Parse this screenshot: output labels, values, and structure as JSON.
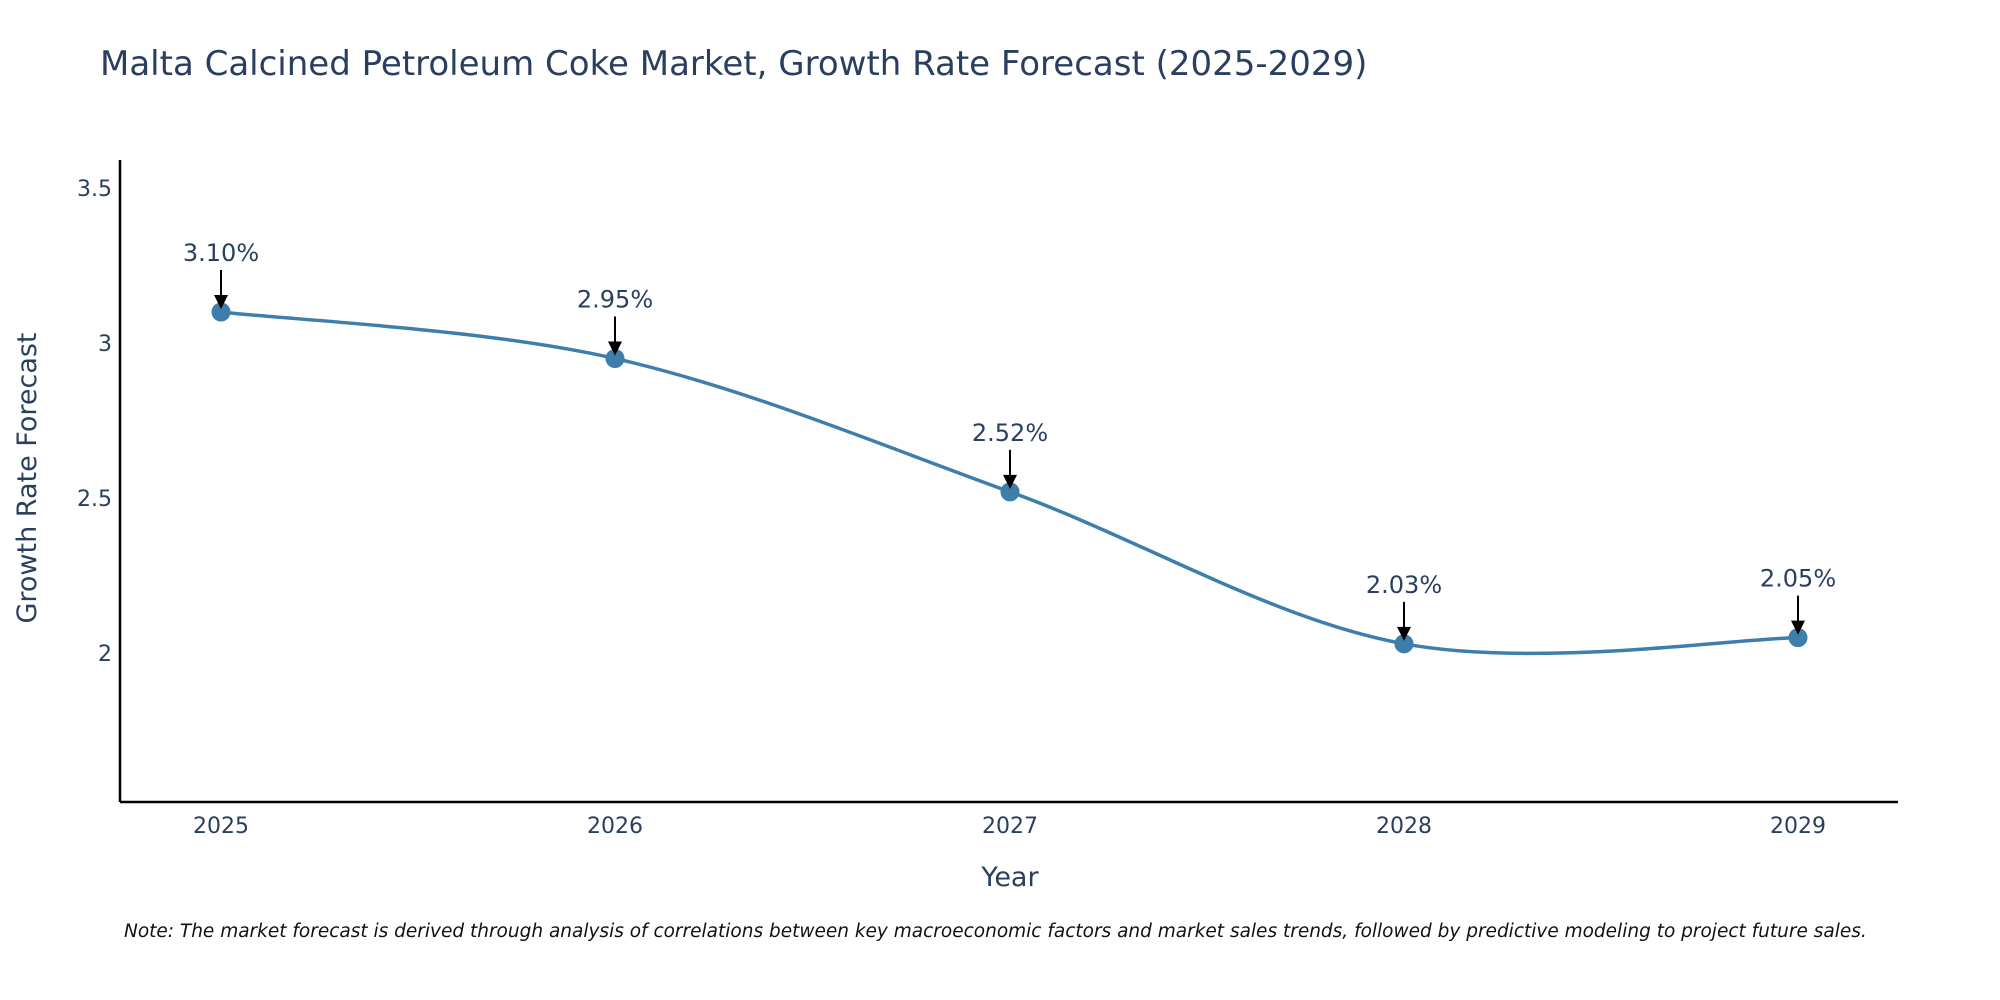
{
  "chart_data": {
    "type": "line",
    "title": "Malta Calcined Petroleum Coke Market, Growth Rate Forecast (2025-2029)",
    "xlabel": "Year",
    "ylabel": "Growth Rate Forecast",
    "categories": [
      "2025",
      "2026",
      "2027",
      "2028",
      "2029"
    ],
    "series": [
      {
        "name": "Growth Rate Forecast",
        "values": [
          3.1,
          2.95,
          2.52,
          2.03,
          2.05
        ],
        "labels": [
          "3.10%",
          "2.95%",
          "2.52%",
          "2.03%",
          "2.05%"
        ],
        "color": "#3d7eaa"
      }
    ],
    "ylim": [
      1.52,
      3.59
    ],
    "yticks": [
      2,
      2.5,
      3,
      3.5
    ],
    "ytick_labels": [
      "2",
      "2.5",
      "3",
      "3.5"
    ],
    "grid": false,
    "line_shape": "spline"
  },
  "note": "Note: The market forecast is derived through analysis of correlations between key macroeconomic factors and market sales trends, followed by predictive modeling to project future sales."
}
